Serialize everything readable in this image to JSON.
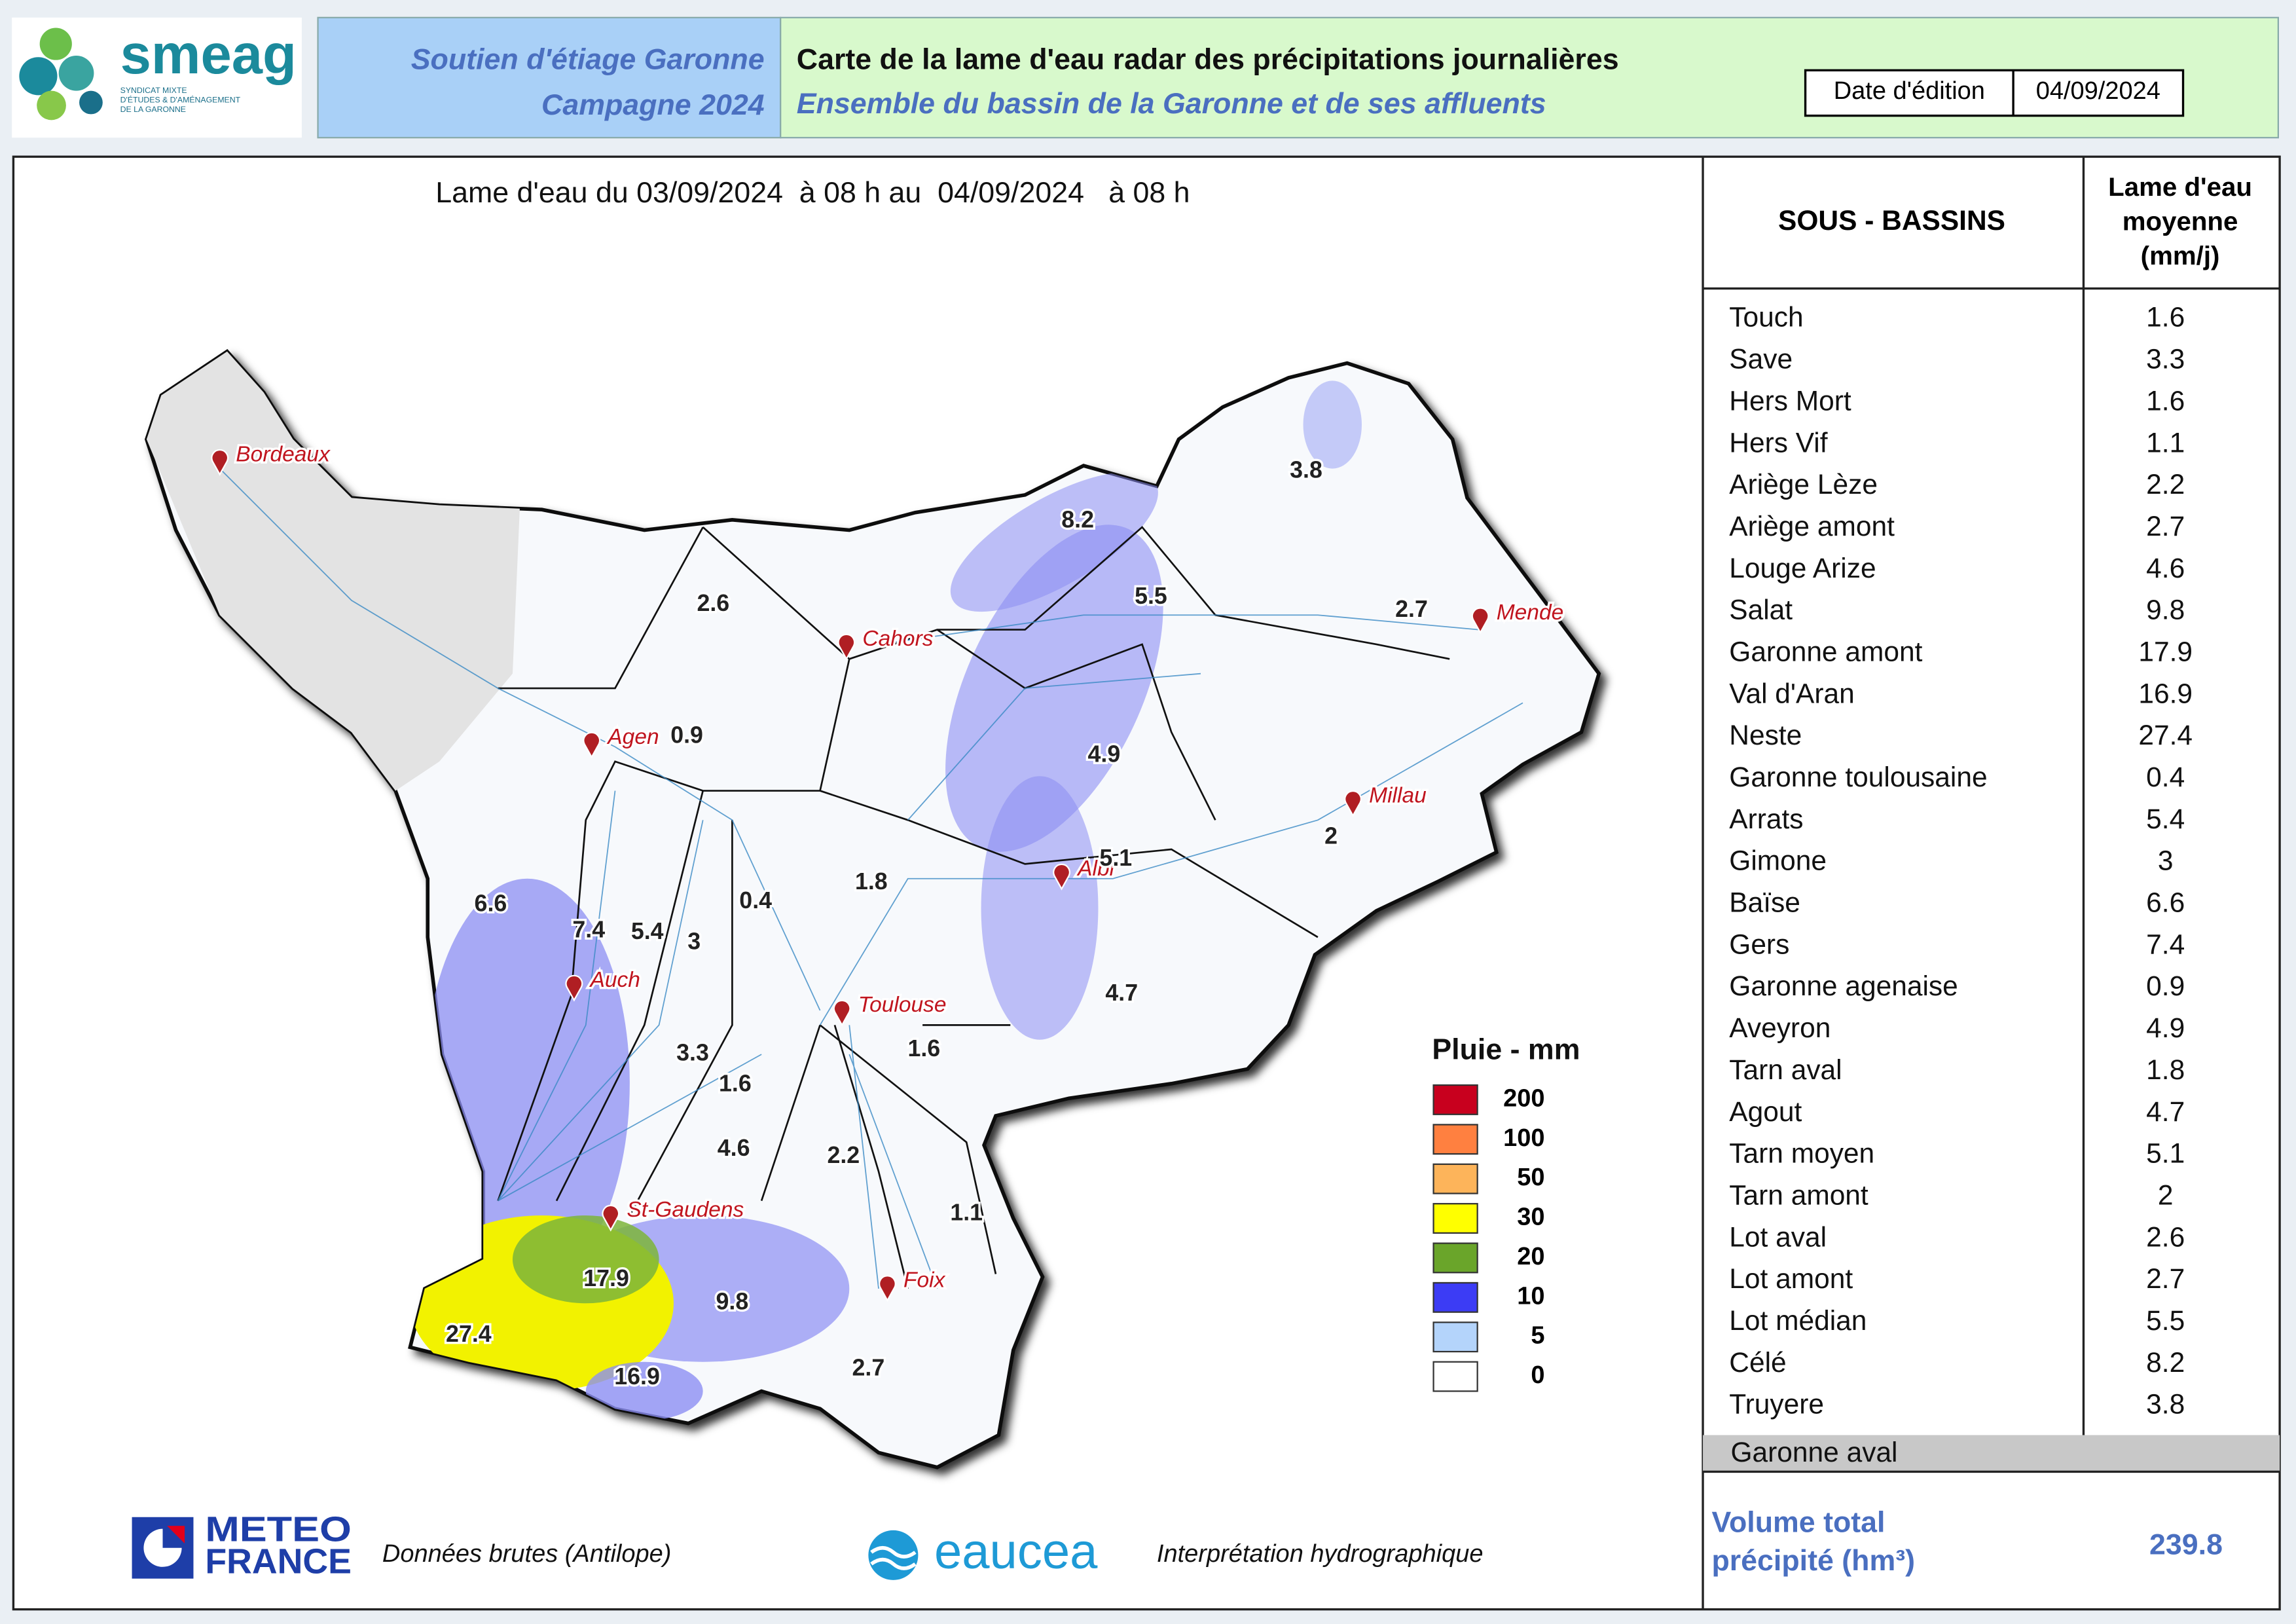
{
  "header": {
    "logo": {
      "name": "smeag",
      "subtitle": [
        "SYNDICAT MIXTE",
        "D'ÉTUDES & D'AMÉNAGEMENT",
        "DE LA GARONNE"
      ]
    },
    "campaign": [
      "Soutien d'étiage Garonne",
      "Campagne 2024"
    ],
    "title": "Carte de la lame d'eau radar des précipitations journalières",
    "subtitle": "Ensemble du bassin de la Garonne et de ses affluents",
    "date_label": "Date d'édition",
    "date": "04/09/2024"
  },
  "map": {
    "title": "Lame d'eau du 03/09/2024  à 08 h au  04/09/2024   à 08 h",
    "cities": [
      "Bordeaux",
      "Cahors",
      "Agen",
      "Mende",
      "Millau",
      "Albi",
      "Auch",
      "Toulouse",
      "St-Gaudens",
      "Foix"
    ],
    "basin_values": [
      "3.8",
      "8.2",
      "5.5",
      "2.6",
      "2.7",
      "0.9",
      "4.9",
      "5.1",
      "2",
      "1.8",
      "0.4",
      "6.6",
      "7.4",
      "5.4",
      "3",
      "4.7",
      "1.6",
      "3.3",
      "1.6",
      "4.6",
      "2.2",
      "1.1",
      "17.9",
      "9.8",
      "27.4",
      "16.9",
      "2.7"
    ],
    "legend": {
      "title": "Pluie - mm",
      "items": [
        {
          "label": "200",
          "color": "#c8001e"
        },
        {
          "label": "100",
          "color": "#ff8040"
        },
        {
          "label": "50",
          "color": "#fdb45a"
        },
        {
          "label": "30",
          "color": "#ffff00"
        },
        {
          "label": "20",
          "color": "#6aa52a"
        },
        {
          "label": "10",
          "color": "#3c3cf5"
        },
        {
          "label": "5",
          "color": "#b4d4fb"
        },
        {
          "label": "0",
          "color": "#ffffff"
        }
      ]
    }
  },
  "table": {
    "headers": {
      "name": "SOUS - BASSINS",
      "value": [
        "Lame d'eau",
        "moyenne",
        "(mm/j)"
      ]
    },
    "rows": [
      [
        "Touch",
        "1.6"
      ],
      [
        "Save",
        "3.3"
      ],
      [
        "Hers Mort",
        "1.6"
      ],
      [
        "Hers Vif",
        "1.1"
      ],
      [
        "Ariège Lèze",
        "2.2"
      ],
      [
        "Ariège amont",
        "2.7"
      ],
      [
        "Louge Arize",
        "4.6"
      ],
      [
        "Salat",
        "9.8"
      ],
      [
        "Garonne amont",
        "17.9"
      ],
      [
        "Val d'Aran",
        "16.9"
      ],
      [
        "Neste",
        "27.4"
      ],
      [
        "Garonne toulousaine",
        "0.4"
      ],
      [
        "Arrats",
        "5.4"
      ],
      [
        "Gimone",
        "3"
      ],
      [
        "Baïse",
        "6.6"
      ],
      [
        "Gers",
        "7.4"
      ],
      [
        "Garonne agenaise",
        "0.9"
      ],
      [
        "Aveyron",
        "4.9"
      ],
      [
        "Tarn aval",
        "1.8"
      ],
      [
        "Agout",
        "4.7"
      ],
      [
        "Tarn moyen",
        "5.1"
      ],
      [
        "Tarn amont",
        "2"
      ],
      [
        "Lot aval",
        "2.6"
      ],
      [
        "Lot amont",
        "2.7"
      ],
      [
        "Lot médian",
        "5.5"
      ],
      [
        "Célé",
        "8.2"
      ],
      [
        "Truyere",
        "3.8"
      ]
    ],
    "excluded": "Garonne aval",
    "total_label": [
      "Volume total",
      "précipité (hm³)"
    ],
    "total_value": "239.8"
  },
  "footer": {
    "meteo": [
      "METEO",
      "FRANCE"
    ],
    "meteo_caption": "Données brutes (Antilope)",
    "eaucea": "eaucea",
    "eaucea_caption": "Interprétation hydrographique"
  }
}
